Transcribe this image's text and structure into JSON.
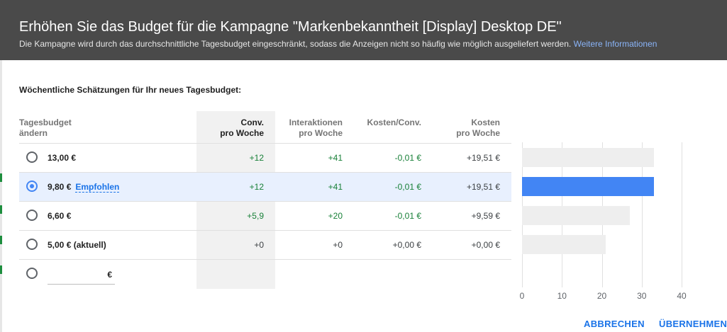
{
  "dialog": {
    "title": "Erhöhen Sie das Budget für die Kampagne \"Markenbekanntheit [Display] Desktop DE\"",
    "subtitle": "Die Kampagne wird durch das durchschnittliche Tagesbudget eingeschränkt, sodass die Anzeigen nicht so häufig wie möglich ausgeliefert werden.",
    "learn_more": "Weitere Informationen"
  },
  "section_title": "Wöchentliche Schätzungen für Ihr neues Tagesbudget:",
  "columns": {
    "budget_l1": "Tagesbudget",
    "budget_l2": "ändern",
    "conv_l1": "Conv.",
    "conv_l2": "pro Woche",
    "inter_l1": "Interaktionen",
    "inter_l2": "pro Woche",
    "cost_conv": "Kosten/Conv.",
    "cost_l1": "Kosten",
    "cost_l2": "pro Woche"
  },
  "rows": [
    {
      "budget": "13,00 €",
      "conv": "+12",
      "inter": "+41",
      "cost_conv": "-0,01 €",
      "cost": "+19,51 €"
    },
    {
      "budget": "9,80 €",
      "recommended": "Empfohlen",
      "conv": "+12",
      "inter": "+41",
      "cost_conv": "-0,01 €",
      "cost": "+19,51 €"
    },
    {
      "budget": "6,60 €",
      "conv": "+5,9",
      "inter": "+20",
      "cost_conv": "-0,01 €",
      "cost": "+9,59 €"
    },
    {
      "budget": "5,00 € (aktuell)",
      "conv": "+0",
      "inter": "+0",
      "cost_conv": "+0,00 €",
      "cost": "+0,00 €"
    }
  ],
  "custom": {
    "currency": "€",
    "value": ""
  },
  "selected_row": 1,
  "chart_data": {
    "type": "bar",
    "orientation": "horizontal",
    "categories": [
      "13,00 €",
      "9,80 €",
      "6,60 €",
      "5,00 € (aktuell)"
    ],
    "values": [
      33,
      33,
      27,
      21
    ],
    "xlim": [
      0,
      40
    ],
    "xticks": [
      "0",
      "10",
      "20",
      "30",
      "40"
    ],
    "grid": true,
    "colors": {
      "default": "#eeeeee",
      "selected": "#4285f4"
    }
  },
  "actions": {
    "cancel": "ABBRECHEN",
    "apply": "ÜBERNEHMEN"
  }
}
